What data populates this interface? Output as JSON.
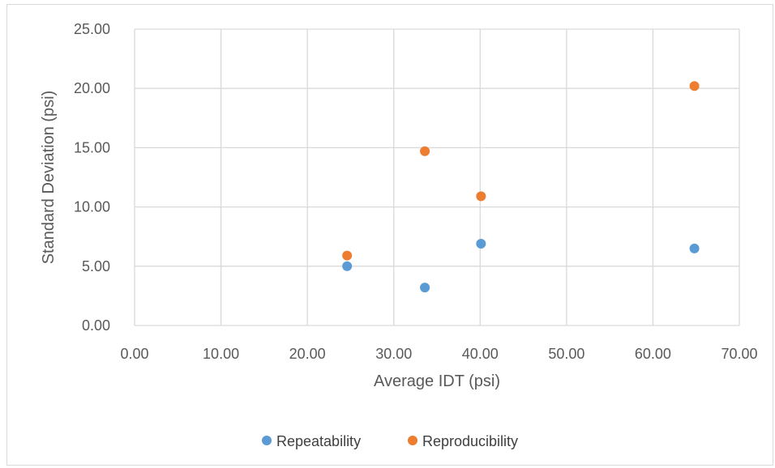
{
  "chart_data": {
    "type": "scatter",
    "title": "",
    "xlabel": "Average IDT (psi)",
    "ylabel": "Standard Deviation (psi)",
    "xlim": [
      0,
      70
    ],
    "ylim": [
      0,
      25
    ],
    "x_ticks": [
      "0.00",
      "10.00",
      "20.00",
      "30.00",
      "40.00",
      "50.00",
      "60.00",
      "70.00"
    ],
    "y_ticks": [
      "0.00",
      "5.00",
      "10.00",
      "15.00",
      "20.00",
      "25.00"
    ],
    "x_tick_values": [
      0,
      10,
      20,
      30,
      40,
      50,
      60,
      70
    ],
    "y_tick_values": [
      0,
      5,
      10,
      15,
      20,
      25
    ],
    "grid": true,
    "legend_position": "bottom",
    "series": [
      {
        "name": "Repeatability",
        "color": "#5B9BD5",
        "points": [
          {
            "x": 24.6,
            "y": 5.0
          },
          {
            "x": 33.6,
            "y": 3.2
          },
          {
            "x": 40.1,
            "y": 6.9
          },
          {
            "x": 64.8,
            "y": 6.5
          }
        ]
      },
      {
        "name": "Reproducibility",
        "color": "#ED7D31",
        "points": [
          {
            "x": 24.6,
            "y": 5.9
          },
          {
            "x": 33.6,
            "y": 14.7
          },
          {
            "x": 40.1,
            "y": 10.9
          },
          {
            "x": 64.8,
            "y": 20.2
          }
        ]
      }
    ]
  }
}
